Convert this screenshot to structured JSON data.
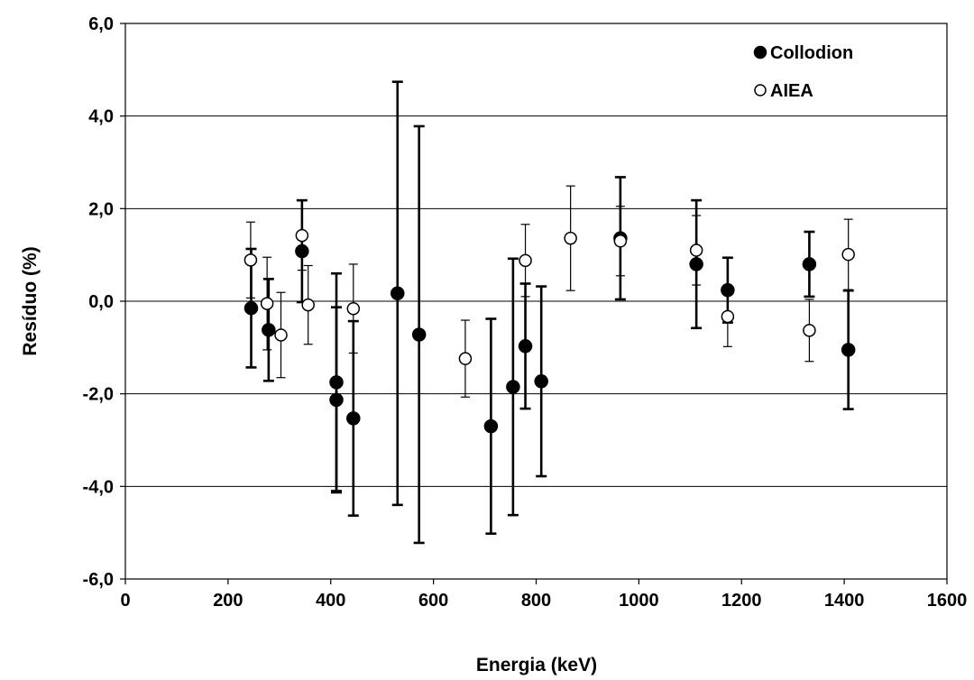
{
  "chart_data": {
    "type": "scatter",
    "xlabel": "Energia (keV)",
    "ylabel": "Resíduo (%)",
    "xlim": [
      0,
      1600
    ],
    "ylim": [
      -6,
      6
    ],
    "x_ticks": [
      0,
      200,
      400,
      600,
      800,
      1000,
      1200,
      1400,
      1600
    ],
    "x_tick_labels": [
      "0",
      "200",
      "400",
      "600",
      "800",
      "1000",
      "1200",
      "1400",
      "1600"
    ],
    "y_ticks": [
      -6,
      -4,
      -2,
      0,
      2,
      4,
      6
    ],
    "y_tick_labels": [
      "-6,0",
      "-4,0",
      "-2,0",
      "0,0",
      "2,0",
      "4,0",
      "6,0"
    ],
    "grid": "horizontal",
    "legend_position": "top-right",
    "series": [
      {
        "name": "Collodion",
        "marker": "filled-circle",
        "color": "#000000",
        "points": [
          {
            "x": 245,
            "y": -0.15,
            "err": 1.28
          },
          {
            "x": 279,
            "y": -0.62,
            "err": 1.1
          },
          {
            "x": 344,
            "y": 1.08,
            "err": 1.1
          },
          {
            "x": 411,
            "y": -1.75,
            "err": 2.35
          },
          {
            "x": 411,
            "y": -2.13,
            "err": 2.0
          },
          {
            "x": 444,
            "y": -2.53,
            "err": 2.1
          },
          {
            "x": 530,
            "y": 0.17,
            "err": 4.57
          },
          {
            "x": 572,
            "y": -0.72,
            "err": 4.5
          },
          {
            "x": 712,
            "y": -2.7,
            "err": 2.32
          },
          {
            "x": 755,
            "y": -1.85,
            "err": 2.77
          },
          {
            "x": 779,
            "y": -0.97,
            "err": 1.35
          },
          {
            "x": 810,
            "y": -1.73,
            "err": 2.05
          },
          {
            "x": 964,
            "y": 1.36,
            "err": 1.32
          },
          {
            "x": 1112,
            "y": 0.8,
            "err": 1.38
          },
          {
            "x": 1173,
            "y": 0.24,
            "err": 0.7
          },
          {
            "x": 1332,
            "y": 0.8,
            "err": 0.7
          },
          {
            "x": 1408,
            "y": -1.05,
            "err": 1.28
          }
        ]
      },
      {
        "name": "AIEA",
        "marker": "open-circle",
        "color": "#000000",
        "points": [
          {
            "x": 244,
            "y": 0.89,
            "err": 0.82
          },
          {
            "x": 276,
            "y": -0.05,
            "err": 1.0
          },
          {
            "x": 303,
            "y": -0.73,
            "err": 0.92
          },
          {
            "x": 344,
            "y": 1.42,
            "err": 0.75
          },
          {
            "x": 356,
            "y": -0.08,
            "err": 0.85
          },
          {
            "x": 444,
            "y": -0.16,
            "err": 0.96
          },
          {
            "x": 662,
            "y": -1.24,
            "err": 0.83
          },
          {
            "x": 779,
            "y": 0.88,
            "err": 0.78
          },
          {
            "x": 867,
            "y": 1.36,
            "err": 1.13
          },
          {
            "x": 964,
            "y": 1.3,
            "err": 0.75
          },
          {
            "x": 1112,
            "y": 1.1,
            "err": 0.75
          },
          {
            "x": 1173,
            "y": -0.33,
            "err": 0.65
          },
          {
            "x": 1332,
            "y": -0.63,
            "err": 0.67
          },
          {
            "x": 1408,
            "y": 1.01,
            "err": 0.76
          }
        ]
      }
    ]
  }
}
